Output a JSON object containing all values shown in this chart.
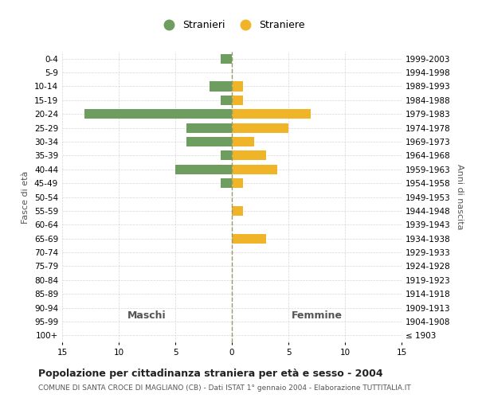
{
  "age_groups": [
    "100+",
    "95-99",
    "90-94",
    "85-89",
    "80-84",
    "75-79",
    "70-74",
    "65-69",
    "60-64",
    "55-59",
    "50-54",
    "45-49",
    "40-44",
    "35-39",
    "30-34",
    "25-29",
    "20-24",
    "15-19",
    "10-14",
    "5-9",
    "0-4"
  ],
  "birth_years": [
    "≤ 1903",
    "1904-1908",
    "1909-1913",
    "1914-1918",
    "1919-1923",
    "1924-1928",
    "1929-1933",
    "1934-1938",
    "1939-1943",
    "1944-1948",
    "1949-1953",
    "1954-1958",
    "1959-1963",
    "1964-1968",
    "1969-1973",
    "1974-1978",
    "1979-1983",
    "1984-1988",
    "1989-1993",
    "1994-1998",
    "1999-2003"
  ],
  "maschi": [
    0,
    0,
    0,
    0,
    0,
    0,
    0,
    0,
    0,
    0,
    0,
    1,
    5,
    1,
    4,
    4,
    13,
    1,
    2,
    0,
    1
  ],
  "femmine": [
    0,
    0,
    0,
    0,
    0,
    0,
    0,
    3,
    0,
    1,
    0,
    1,
    4,
    3,
    2,
    5,
    7,
    1,
    1,
    0,
    0
  ],
  "maschi_color": "#6e9e5f",
  "femmine_color": "#f0b429",
  "background_color": "#ffffff",
  "grid_color": "#cccccc",
  "title": "Popolazione per cittadinanza straniera per età e sesso - 2004",
  "subtitle": "COMUNE DI SANTA CROCE DI MAGLIANO (CB) - Dati ISTAT 1° gennaio 2004 - Elaborazione TUTTITALIA.IT",
  "xlabel_left": "Maschi",
  "xlabel_right": "Femmine",
  "ylabel_left": "Fasce di età",
  "ylabel_right": "Anni di nascita",
  "legend_stranieri": "Stranieri",
  "legend_straniere": "Straniere",
  "xlim": 15,
  "bar_height": 0.7,
  "title_fontsize": 9,
  "subtitle_fontsize": 6.5,
  "tick_fontsize": 7.5,
  "header_fontsize": 9,
  "label_fontsize": 8,
  "legend_fontsize": 9,
  "dashed_color": "#999966"
}
